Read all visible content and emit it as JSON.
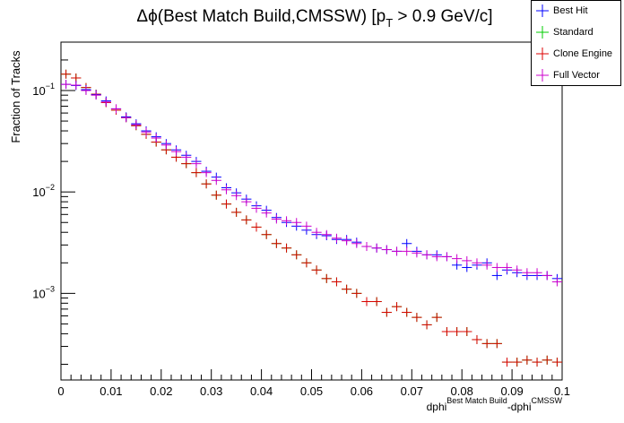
{
  "chart_data": {
    "type": "scatter",
    "title_main": "Δϕ(Best Match Build,CMSSW) [p",
    "title_sub": "T",
    "title_tail": " > 0.9 GeV/c]",
    "ylabel": "Fraction of Tracks",
    "xlabel_base": "dphi",
    "xlabel_sup1": "Best Match Build",
    "xlabel_mid": "-dphi",
    "xlabel_sup2": "CMSSW",
    "xlim": [
      0,
      0.1
    ],
    "ylim": [
      0.00014,
      0.3
    ],
    "yscale": "log",
    "xticks": [
      "0",
      "0.01",
      "0.02",
      "0.03",
      "0.04",
      "0.05",
      "0.06",
      "0.07",
      "0.08",
      "0.09",
      "0.1"
    ],
    "yticks": [
      {
        "value": 0.1,
        "base": "10",
        "exp": "−1"
      },
      {
        "value": 0.01,
        "base": "10",
        "exp": "−2"
      },
      {
        "value": 0.001,
        "base": "10",
        "exp": "−3"
      }
    ],
    "bin_width": 0.002,
    "legend_position": "top-right",
    "series": [
      {
        "name": "Best Hit",
        "color": "#0000ff",
        "values": [
          0.115,
          0.112,
          0.102,
          0.091,
          0.079,
          0.066,
          0.055,
          0.047,
          0.04,
          0.035,
          0.03,
          0.026,
          0.023,
          0.02,
          0.016,
          0.014,
          0.011,
          0.0098,
          0.0085,
          0.0073,
          0.0066,
          0.0056,
          0.005,
          0.0046,
          0.0042,
          0.0038,
          0.0037,
          0.0034,
          0.0034,
          0.0032,
          0.0029,
          0.0028,
          0.0027,
          0.0026,
          0.0031,
          0.0026,
          0.0024,
          0.0024,
          0.0023,
          0.0019,
          0.0018,
          0.0019,
          0.002,
          0.0015,
          0.0017,
          0.0016,
          0.0015,
          0.0015,
          0.0015,
          0.0014
        ]
      },
      {
        "name": "Standard",
        "color": "#00cc00",
        "values": [
          0.145,
          0.133,
          0.107,
          0.092,
          0.076,
          0.064,
          0.054,
          0.045,
          0.037,
          0.031,
          0.026,
          0.022,
          0.019,
          0.0155,
          0.012,
          0.0093,
          0.0076,
          0.0063,
          0.0053,
          0.0045,
          0.0038,
          0.0031,
          0.0028,
          0.0024,
          0.002,
          0.0017,
          0.0014,
          0.0013,
          0.0011,
          0.001,
          0.00083,
          0.00083,
          0.00065,
          0.00074,
          0.00065,
          0.00058,
          0.00049,
          0.00058,
          0.00042,
          0.00042,
          0.00042,
          0.00035,
          0.00032,
          0.00032,
          0.00021,
          0.00021,
          0.00022,
          0.00021,
          0.00022,
          0.00021
        ]
      },
      {
        "name": "Clone Engine",
        "color": "#dd0000",
        "values": [
          0.145,
          0.133,
          0.107,
          0.092,
          0.076,
          0.064,
          0.054,
          0.045,
          0.037,
          0.031,
          0.026,
          0.022,
          0.019,
          0.0155,
          0.012,
          0.0093,
          0.0076,
          0.0063,
          0.0053,
          0.0045,
          0.0038,
          0.0031,
          0.0028,
          0.0024,
          0.002,
          0.0017,
          0.0014,
          0.0013,
          0.0011,
          0.001,
          0.00083,
          0.00083,
          0.00065,
          0.00074,
          0.00065,
          0.00058,
          0.00049,
          0.00058,
          0.00042,
          0.00042,
          0.00042,
          0.00035,
          0.00032,
          0.00032,
          0.00021,
          0.00021,
          0.00022,
          0.00021,
          0.00022,
          0.00021
        ]
      },
      {
        "name": "Full Vector",
        "color": "#cc00cc",
        "values": [
          0.115,
          0.113,
          0.1,
          0.09,
          0.077,
          0.066,
          0.054,
          0.046,
          0.039,
          0.034,
          0.029,
          0.025,
          0.022,
          0.019,
          0.0155,
          0.013,
          0.0105,
          0.0092,
          0.008,
          0.0069,
          0.0062,
          0.0054,
          0.0052,
          0.005,
          0.0046,
          0.004,
          0.0038,
          0.0035,
          0.0033,
          0.0031,
          0.0029,
          0.0028,
          0.0027,
          0.0026,
          0.0026,
          0.0025,
          0.0024,
          0.0023,
          0.0023,
          0.0022,
          0.0021,
          0.002,
          0.0019,
          0.0018,
          0.0018,
          0.0017,
          0.0016,
          0.0016,
          0.0015,
          0.0013
        ]
      }
    ]
  }
}
